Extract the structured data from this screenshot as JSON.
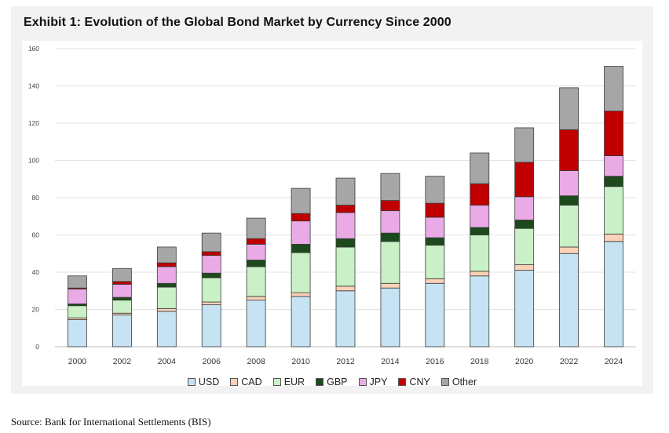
{
  "title": "Exhibit 1: Evolution of the Global Bond Market by Currency Since 2000",
  "source": "Source: Bank for International Settlements (BIS)",
  "chart_data": {
    "type": "bar",
    "stacked": true,
    "categories": [
      "2000",
      "2002",
      "2004",
      "2006",
      "2008",
      "2010",
      "2012",
      "2014",
      "2016",
      "2018",
      "2020",
      "2022",
      "2024"
    ],
    "ylim": [
      0,
      160
    ],
    "yticks": [
      0,
      20,
      40,
      60,
      80,
      100,
      120,
      140,
      160
    ],
    "grid": true,
    "legend_position": "bottom",
    "series": [
      {
        "name": "USD",
        "color": "#c5e3f2",
        "values": [
          14.5,
          17,
          19,
          22.5,
          25,
          27,
          30,
          31.5,
          34,
          38,
          41,
          50,
          56.5
        ]
      },
      {
        "name": "CAD",
        "color": "#f9d2b8",
        "values": [
          1,
          1,
          1.5,
          1.5,
          2,
          2,
          2.5,
          2.5,
          2.5,
          2.5,
          3,
          3.5,
          4
        ]
      },
      {
        "name": "EUR",
        "color": "#c9f0c6",
        "values": [
          6.5,
          7,
          11.5,
          13,
          16,
          21.5,
          21,
          22.5,
          18,
          19.5,
          19.5,
          22.5,
          25.5
        ]
      },
      {
        "name": "GBP",
        "color": "#1c4a1c",
        "values": [
          1,
          1.5,
          2,
          2.5,
          3.5,
          4.5,
          4.5,
          4.5,
          4,
          4,
          4.5,
          5,
          5.5
        ]
      },
      {
        "name": "JPY",
        "color": "#eaaae6",
        "values": [
          8,
          7,
          9,
          9.5,
          8.5,
          12.5,
          14,
          12,
          11,
          12,
          12.5,
          13.5,
          11
        ]
      },
      {
        "name": "CNY",
        "color": "#c00000",
        "values": [
          0.5,
          1.5,
          2,
          2,
          3,
          4,
          4,
          5.5,
          7.5,
          11.5,
          18.5,
          22,
          24
        ]
      },
      {
        "name": "Other",
        "color": "#a6a6a6",
        "values": [
          6.5,
          7,
          8.5,
          10,
          11,
          13.5,
          14.5,
          14.5,
          14.5,
          16.5,
          18.5,
          22.5,
          24
        ]
      }
    ]
  }
}
